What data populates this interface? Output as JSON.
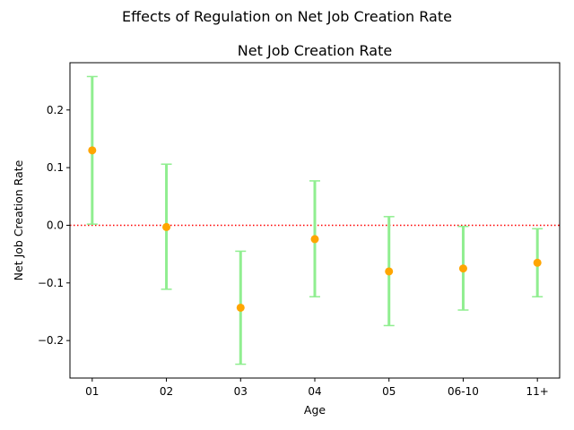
{
  "figure": {
    "suptitle": "Effects of Regulation on Net Job Creation Rate"
  },
  "chart_data": {
    "type": "scatter",
    "title": "Net Job Creation Rate",
    "xlabel": "Age",
    "ylabel": "Net Job Creation Rate",
    "categories": [
      "01",
      "02",
      "03",
      "04",
      "05",
      "06-10",
      "11+"
    ],
    "series": [
      {
        "values": [
          0.13,
          -0.003,
          -0.143,
          -0.024,
          -0.08,
          -0.075,
          -0.065
        ],
        "lower": [
          0.002,
          -0.111,
          -0.241,
          -0.124,
          -0.174,
          -0.147,
          -0.124
        ],
        "upper": [
          0.258,
          0.106,
          -0.045,
          0.077,
          0.015,
          -0.002,
          -0.006
        ],
        "marker_color": "#ffa500",
        "errorbar_color": "#90ee90"
      }
    ],
    "reference_line": {
      "y": 0.0,
      "color": "#ff0000",
      "style": "dotted"
    },
    "ylim": [
      -0.265,
      0.282
    ],
    "yticks": [
      -0.2,
      -0.1,
      0.0,
      0.1,
      0.2
    ],
    "ytick_labels": [
      "−0.2",
      "−0.1",
      "0.0",
      "0.1",
      "0.2"
    ],
    "grid": false,
    "legend": "none"
  }
}
